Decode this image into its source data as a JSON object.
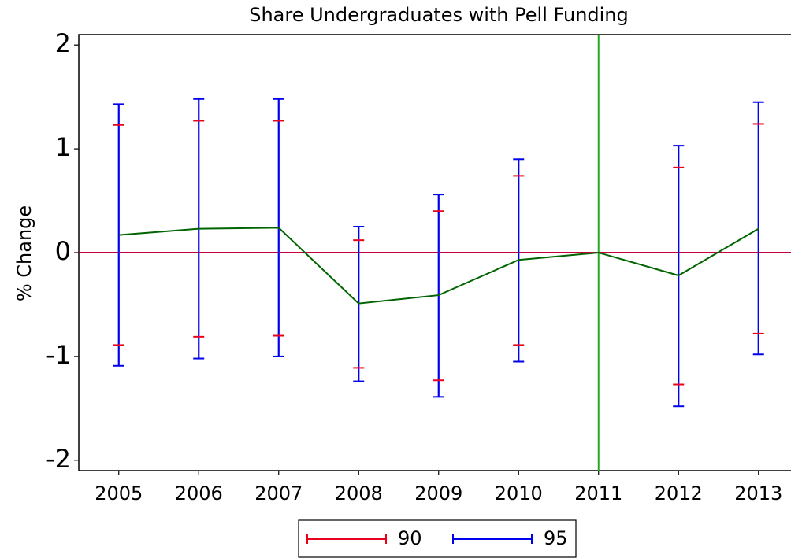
{
  "chart_data": {
    "type": "errorbar",
    "title": "Share Undergraduates with Pell Funding",
    "y_label": "% Change",
    "x": [
      2005,
      2006,
      2007,
      2008,
      2009,
      2010,
      2011,
      2012,
      2013
    ],
    "xlim": [
      2004.5,
      2013.5
    ],
    "xticks": [
      2005,
      2006,
      2007,
      2008,
      2009,
      2010,
      2011,
      2012,
      2013
    ],
    "ylim": [
      -2.1,
      2.1
    ],
    "yticks": [
      -2,
      -1,
      0,
      1,
      2
    ],
    "line": {
      "color": "#006400",
      "values": [
        0.17,
        0.23,
        0.24,
        -0.49,
        -0.41,
        -0.07,
        0,
        -0.22,
        0.23
      ]
    },
    "series": [
      {
        "name": "90",
        "color": "#e8001c",
        "upper": [
          1.23,
          1.27,
          1.27,
          0.12,
          0.4,
          0.74,
          null,
          0.82,
          1.24
        ],
        "lower": [
          -0.89,
          -0.81,
          -0.8,
          -1.11,
          -1.23,
          -0.89,
          null,
          -1.27,
          -0.78
        ]
      },
      {
        "name": "95",
        "color": "#0000ee",
        "upper": [
          1.43,
          1.48,
          1.48,
          0.25,
          0.56,
          0.9,
          null,
          1.03,
          1.45
        ],
        "lower": [
          -1.09,
          -1.02,
          -1.0,
          -1.24,
          -1.39,
          -1.05,
          null,
          -1.48,
          -0.98
        ]
      }
    ],
    "hline": {
      "value": 0,
      "color": "#c8003c"
    },
    "vline": {
      "value": 2011,
      "color": "#22aa22"
    }
  }
}
